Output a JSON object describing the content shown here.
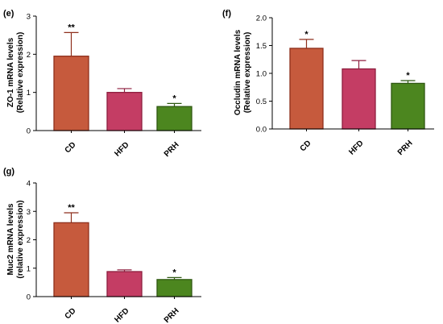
{
  "chart_data": [
    {
      "type": "bar",
      "panel_label": "(e)",
      "ylabel_line1": "ZO-1 mRNA levels",
      "ylabel_line2": "(Relative expression)",
      "categories": [
        "CD",
        "HFD",
        "PRH"
      ],
      "values": [
        1.95,
        1.0,
        0.63
      ],
      "errors": [
        0.62,
        0.1,
        0.08
      ],
      "significance": [
        "**",
        "",
        "*"
      ],
      "colors": [
        "#c65a3d",
        "#c43d64",
        "#4c861f"
      ],
      "edge_colors": [
        "#8e2f1c",
        "#8e1f3f",
        "#2f5812"
      ],
      "ylim": [
        0,
        3
      ],
      "yticks": [
        0,
        1,
        2,
        3
      ],
      "ytick_labels": [
        "0",
        "1",
        "2",
        "3"
      ]
    },
    {
      "type": "bar",
      "panel_label": "(f)",
      "ylabel_line1": "Occludin mRNA levels",
      "ylabel_line2": "(Relative expression)",
      "categories": [
        "CD",
        "HFD",
        "PRH"
      ],
      "values": [
        1.45,
        1.08,
        0.82
      ],
      "errors": [
        0.16,
        0.15,
        0.05
      ],
      "significance": [
        "*",
        "",
        "*"
      ],
      "colors": [
        "#c65a3d",
        "#c43d64",
        "#4c861f"
      ],
      "edge_colors": [
        "#8e2f1c",
        "#8e1f3f",
        "#2f5812"
      ],
      "ylim": [
        0,
        2
      ],
      "yticks": [
        0,
        0.5,
        1,
        1.5,
        2
      ],
      "ytick_labels": [
        "0.0",
        "0.5",
        "1.0",
        "1.5",
        "2.0"
      ]
    },
    {
      "type": "bar",
      "panel_label": "(g)",
      "ylabel_line1": "Muc2 mRNA levels",
      "ylabel_line2": "(relative expression)",
      "categories": [
        "CD",
        "HFD",
        "PRH"
      ],
      "values": [
        2.6,
        0.88,
        0.6
      ],
      "errors": [
        0.35,
        0.06,
        0.07
      ],
      "significance": [
        "**",
        "",
        "*"
      ],
      "colors": [
        "#c65a3d",
        "#c43d64",
        "#4c861f"
      ],
      "edge_colors": [
        "#8e2f1c",
        "#8e1f3f",
        "#2f5812"
      ],
      "ylim": [
        0,
        4
      ],
      "yticks": [
        0,
        1,
        2,
        3,
        4
      ],
      "ytick_labels": [
        "0",
        "1",
        "2",
        "3",
        "4"
      ]
    }
  ]
}
